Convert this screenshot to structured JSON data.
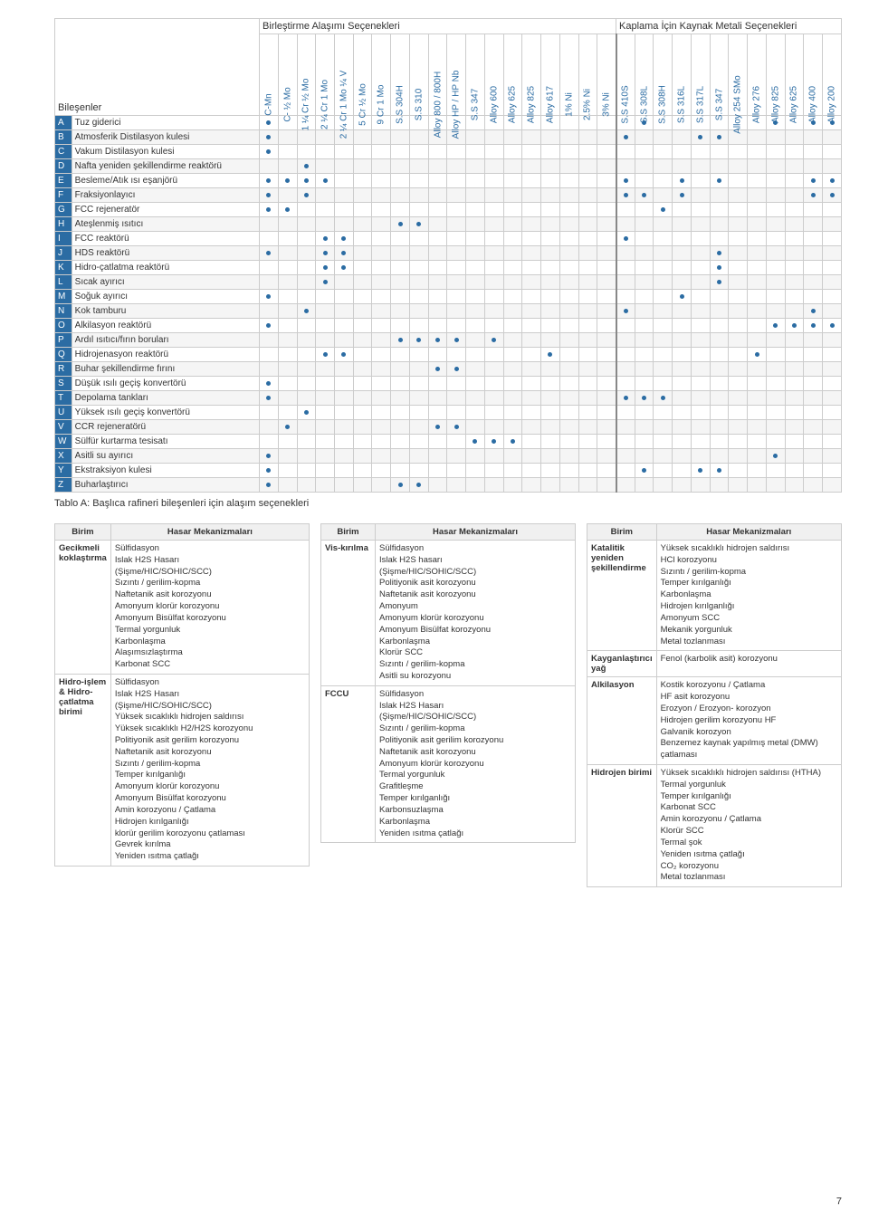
{
  "colors": {
    "header_blue": "#2b6ca3",
    "dot": "#2b6ca3",
    "row_accent": "#2b6ca3",
    "row_zebra": "#f5f5f5",
    "group_sep": "#888888"
  },
  "group_headers": {
    "brazing": "Birleştirme Alaşımı Seçenekleri",
    "coating": "Kaplama İçin Kaynak Metali Seçenekleri"
  },
  "components_label": "Bileşenler",
  "brazing_cols": [
    "C-Mn",
    "C- ½ Mo",
    "1 ¼ Cr ½ Mo",
    "2 ¼ Cr 1 Mo",
    "2 ¼ Cr 1 Mo ¼ V",
    "5 Cr ½ Mo",
    "9 Cr 1 Mo",
    "S.S 304H",
    "S.S 310",
    "Alloy 800 / 800H",
    "Alloy HP / HP Nb",
    "S.S 347",
    "Alloy 600",
    "Alloy 625",
    "Alloy 825",
    "Alloy 617",
    "1% Ni",
    "2.5% Ni",
    "3% Ni"
  ],
  "coating_cols": [
    "S.S 410S",
    "S.S 308L",
    "S.S 308H",
    "S.S 316L",
    "S.S 317L",
    "S.S 347",
    "Alloy 254 SMo",
    "Alloy 276",
    "Alloy 825",
    "Alloy 625",
    "Alloy 400",
    "Alloy 200"
  ],
  "rows": [
    {
      "id": "A",
      "name": "Tuz giderici",
      "b": [
        0
      ],
      "c": [
        1,
        8,
        10,
        11
      ]
    },
    {
      "id": "B",
      "name": "Atmosferik Distilasyon kulesi",
      "b": [
        0
      ],
      "c": [
        0,
        4,
        5
      ]
    },
    {
      "id": "C",
      "name": "Vakum Distilasyon kulesi",
      "b": [
        0
      ],
      "c": []
    },
    {
      "id": "D",
      "name": "Nafta yeniden şekillendirme reaktörü",
      "b": [
        2
      ],
      "c": []
    },
    {
      "id": "E",
      "name": "Besleme/Atık ısı eşanjörü",
      "b": [
        0,
        1,
        2,
        3
      ],
      "c": [
        0,
        3,
        5,
        10,
        11
      ]
    },
    {
      "id": "F",
      "name": "Fraksiyonlayıcı",
      "b": [
        0,
        2
      ],
      "c": [
        0,
        1,
        3,
        10,
        11
      ]
    },
    {
      "id": "G",
      "name": "FCC rejeneratör",
      "b": [
        0,
        1
      ],
      "c": [
        2
      ]
    },
    {
      "id": "H",
      "name": "Ateşlenmiş ısıtıcı",
      "b": [
        7,
        8
      ],
      "c": []
    },
    {
      "id": "I",
      "name": "FCC reaktörü",
      "b": [
        3,
        4
      ],
      "c": [
        0
      ]
    },
    {
      "id": "J",
      "name": "HDS reaktörü",
      "b": [
        0,
        3,
        4
      ],
      "c": [
        5
      ]
    },
    {
      "id": "K",
      "name": "Hidro-çatlatma reaktörü",
      "b": [
        3,
        4
      ],
      "c": [
        5
      ]
    },
    {
      "id": "L",
      "name": "Sıcak ayırıcı",
      "b": [
        3
      ],
      "c": [
        5
      ]
    },
    {
      "id": "M",
      "name": "Soğuk ayırıcı",
      "b": [
        0
      ],
      "c": [
        3
      ]
    },
    {
      "id": "N",
      "name": "Kok tamburu",
      "b": [
        2
      ],
      "c": [
        0,
        10
      ]
    },
    {
      "id": "O",
      "name": "Alkilasyon reaktörü",
      "b": [
        0
      ],
      "c": [
        8,
        9,
        10,
        11
      ]
    },
    {
      "id": "P",
      "name": "Ardıl ısıtıcı/fırın boruları",
      "b": [
        7,
        8,
        9,
        10,
        12
      ],
      "c": []
    },
    {
      "id": "Q",
      "name": "Hidrojenasyon reaktörü",
      "b": [
        3,
        4,
        15
      ],
      "c": [
        7
      ]
    },
    {
      "id": "R",
      "name": "Buhar şekillendirme fırını",
      "b": [
        9,
        10
      ],
      "c": []
    },
    {
      "id": "S",
      "name": "Düşük ısılı geçiş konvertörü",
      "b": [
        0
      ],
      "c": []
    },
    {
      "id": "T",
      "name": "Depolama tankları",
      "b": [
        0
      ],
      "c": [
        0,
        1,
        2
      ]
    },
    {
      "id": "U",
      "name": "Yüksek ısılı geçiş konvertörü",
      "b": [
        2
      ],
      "c": []
    },
    {
      "id": "V",
      "name": "CCR rejeneratörü",
      "b": [
        1,
        9,
        10
      ],
      "c": []
    },
    {
      "id": "W",
      "name": "Sülfür kurtarma tesisatı",
      "b": [
        11,
        12,
        13
      ],
      "c": []
    },
    {
      "id": "X",
      "name": "Asitli su ayırıcı",
      "b": [
        0
      ],
      "c": [
        8
      ]
    },
    {
      "id": "Y",
      "name": "Ekstraksiyon kulesi",
      "b": [
        0
      ],
      "c": [
        1,
        4,
        5
      ]
    },
    {
      "id": "Z",
      "name": "Buharlaştırıcı",
      "b": [
        0,
        7,
        8
      ],
      "c": []
    }
  ],
  "table_caption": "Tablo A: Başlıca rafineri bileşenleri için alaşım seçenekleri",
  "damage_header_unit": "Birim",
  "damage_header_mech": "Hasar Mekanizmaları",
  "damage_columns": [
    [
      {
        "unit": "Gecikmeli koklaştırma",
        "items": [
          "Sülfidasyon",
          "Islak H2S Hasarı",
          "(Şişme/HIC/SOHIC/SCC)",
          "Sızıntı / gerilim-kopma",
          "Naftetanik asit korozyonu",
          "Amonyum klorür korozyonu",
          "Amonyum Bisülfat korozyonu",
          "Termal yorgunluk",
          "Karbonlaşma",
          "Alaşımsızlaştırma",
          "Karbonat SCC"
        ]
      },
      {
        "unit": "Hidro-işlem & Hidro-çatlatma birimi",
        "items": [
          "Sülfidasyon",
          "Islak H2S Hasarı",
          "(Şişme/HIC/SOHIC/SCC)",
          "Yüksek sıcaklıklı hidrojen saldırısı",
          "Yüksek sıcaklıklı H2/H2S korozyonu",
          "Politiyonik asit gerilim korozyonu",
          "Naftetanik asit korozyonu",
          "Sızıntı / gerilim-kopma",
          "Temper kırılganlığı",
          "Amonyum klorür korozyonu",
          "Amonyum Bisülfat korozyonu",
          "Amin korozyonu / Çatlama",
          "Hidrojen kırılganlığı",
          "klorür gerilim korozyonu çatlaması",
          "Gevrek kırılma",
          "Yeniden ısıtma çatlağı"
        ]
      }
    ],
    [
      {
        "unit": "Vis-kırılma",
        "items": [
          "Sülfidasyon",
          "Islak H2S hasarı",
          "(Şişme/HIC/SOHIC/SCC)",
          "Politiyonik asit korozyonu",
          "Naftetanik asit korozyonu",
          "Amonyum",
          "Amonyum klorür korozyonu",
          "Amonyum Bisülfat korozyonu",
          "Karbonlaşma",
          "Klorür SCC",
          "Sızıntı / gerilim-kopma",
          "Asitli su korozyonu"
        ]
      },
      {
        "unit": "FCCU",
        "items": [
          "Sülfidasyon",
          "Islak H2S Hasarı",
          "(Şişme/HIC/SOHIC/SCC)",
          "Sızıntı / gerilim-kopma",
          "Politiyonik asit gerilim korozyonu",
          "Naftetanik asit korozyonu",
          "Amonyum klorür korozyonu",
          "Termal yorgunluk",
          "Grafitleşme",
          "Temper kırılganlığı",
          "Karbonsuzlaşma",
          "Karbonlaşma",
          "Yeniden ısıtma çatlağı"
        ]
      }
    ],
    [
      {
        "unit": "Katalitik yeniden şekillendirme",
        "items": [
          "Yüksek sıcaklıklı hidrojen saldırısı",
          "HCl korozyonu",
          "Sızıntı / gerilim-kopma",
          "Temper kırılganlığı",
          "Karbonlaşma",
          "Hidrojen kırılganlığı",
          "Amonyum SCC",
          "Mekanik yorgunluk",
          "Metal tozlanması"
        ]
      },
      {
        "unit": "Kayganlaştırıcı yağ",
        "items": [
          "Fenol (karbolik asit) korozyonu"
        ]
      },
      {
        "unit": "Alkilasyon",
        "items": [
          "Kostik korozyonu / Çatlama",
          "HF asit korozyonu",
          "Erozyon / Erozyon- korozyon",
          "Hidrojen gerilim korozyonu HF",
          "Galvanik korozyon",
          "Benzemez kaynak yapılmış metal (DMW) çatlaması"
        ]
      },
      {
        "unit": "Hidrojen birimi",
        "items": [
          "Yüksek sıcaklıklı hidrojen saldırısı (HTHA)",
          "Termal yorgunluk",
          "Temper kırılganlığı",
          "Karbonat SCC",
          "Amin korozyonu / Çatlama",
          "Klorür SCC",
          "Termal şok",
          "Yeniden ısıtma çatlağı",
          "CO₂ korozyonu",
          "Metal tozlanması"
        ]
      }
    ]
  ],
  "page_number": "7"
}
